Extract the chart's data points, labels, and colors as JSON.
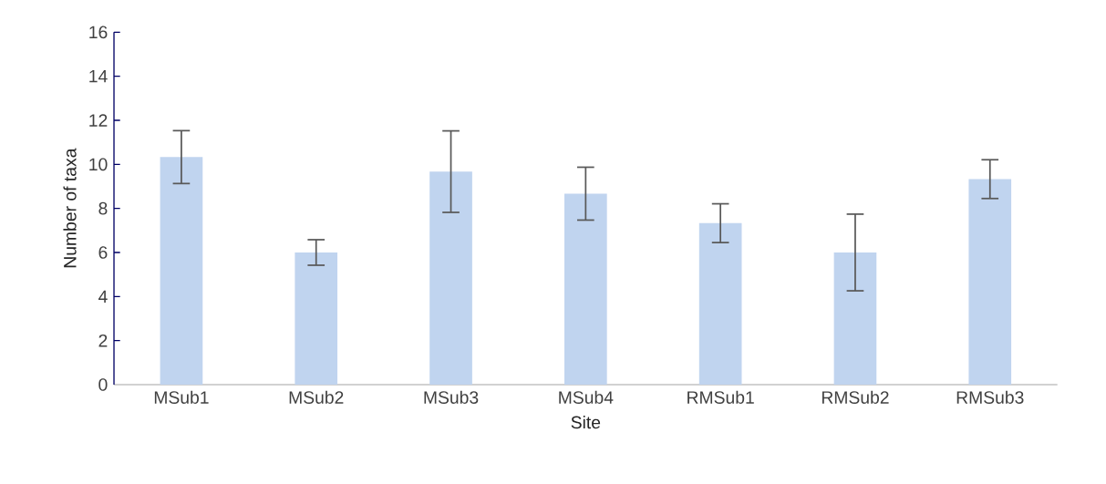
{
  "chart_data": {
    "type": "bar",
    "xlabel": "Site",
    "ylabel": "Number of taxa",
    "categories": [
      "MSub1",
      "MSub2",
      "MSub3",
      "MSub4",
      "RMSub1",
      "RMSub2",
      "RMSub3"
    ],
    "values": [
      10.33,
      6.0,
      9.67,
      8.67,
      7.33,
      6.0,
      9.33
    ],
    "errors": [
      1.2,
      0.58,
      1.85,
      1.2,
      0.88,
      1.74,
      0.88
    ],
    "color": "#c0d4ef",
    "ylim": [
      0,
      16
    ],
    "yticks": [
      0,
      2,
      4,
      6,
      8,
      10,
      12,
      14,
      16
    ]
  }
}
